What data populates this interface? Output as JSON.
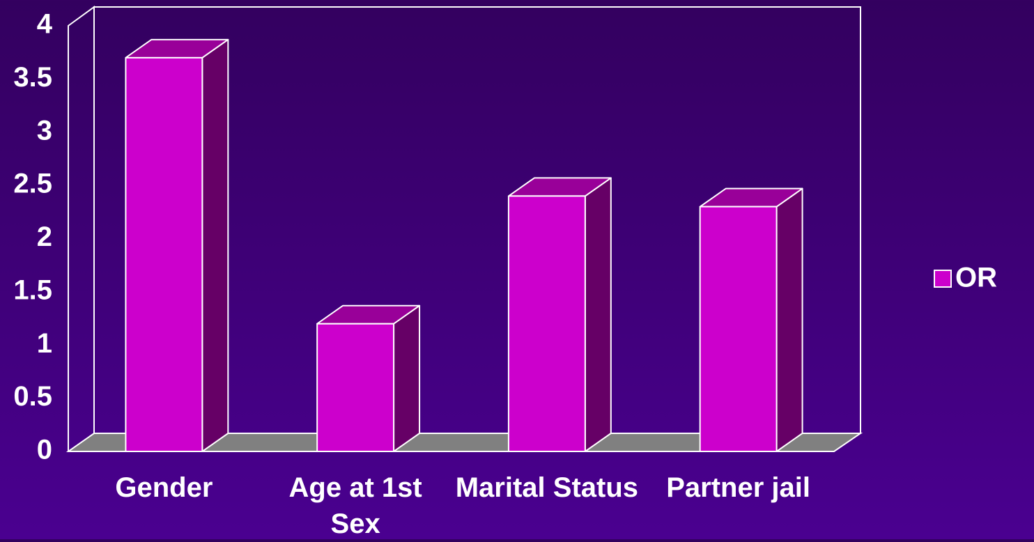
{
  "chart_data": {
    "type": "bar",
    "categories": [
      "Gender",
      "Age at 1st Sex",
      "Marital Status",
      "Partner jail"
    ],
    "series": [
      {
        "name": "OR",
        "color": "#cc00cc",
        "values": [
          3.7,
          1.2,
          2.4,
          2.3
        ]
      }
    ],
    "ylim": [
      0,
      4
    ],
    "yticks": [
      0,
      0.5,
      1,
      1.5,
      2,
      2.5,
      3,
      3.5,
      4
    ],
    "legend": "right",
    "grid": false
  }
}
